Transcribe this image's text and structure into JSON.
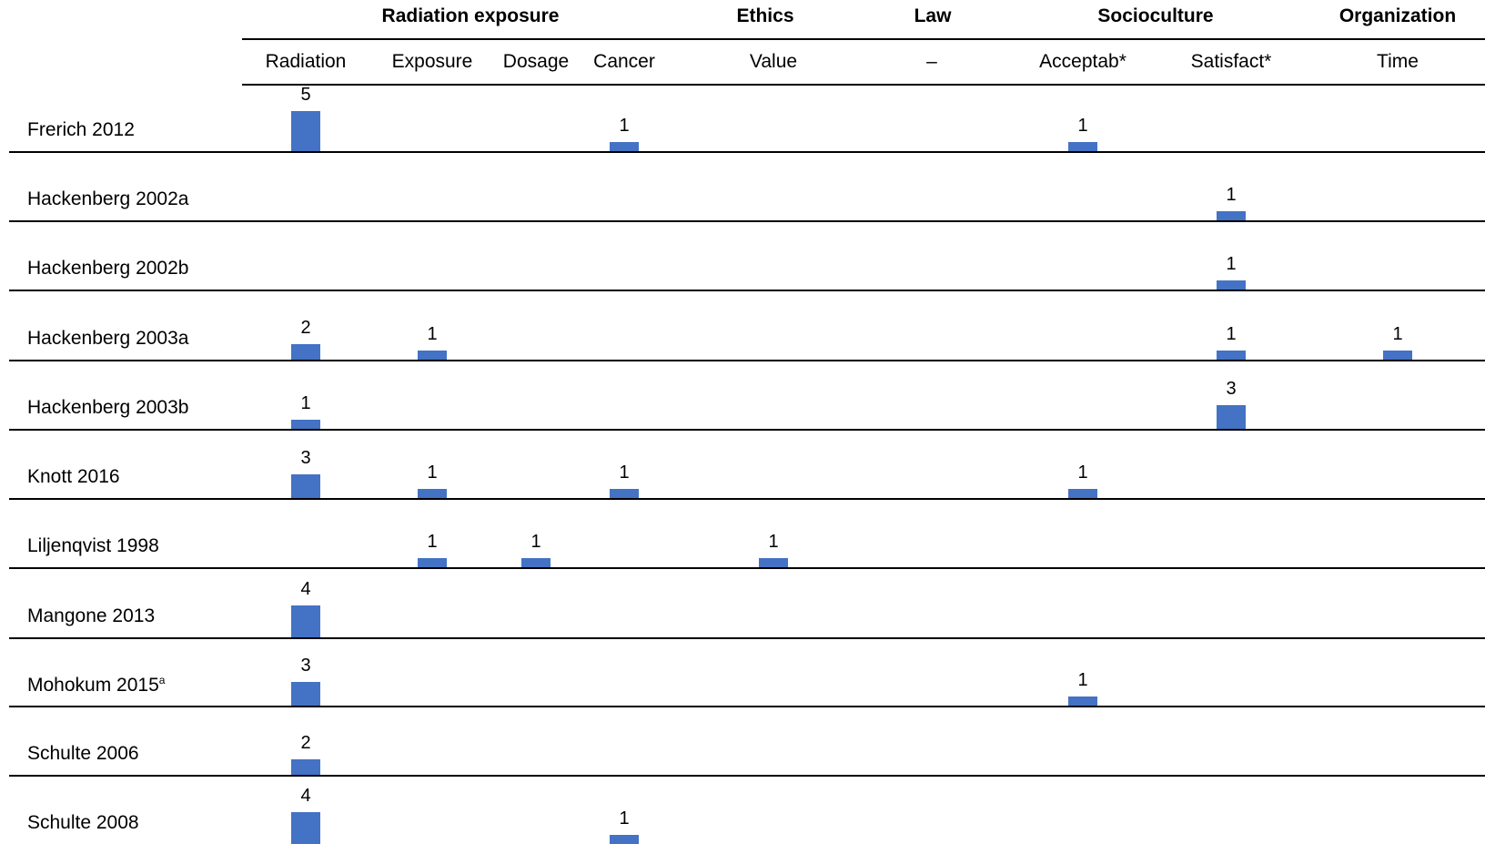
{
  "chart_data": {
    "type": "bar",
    "groups": [
      {
        "name": "Radiation exposure",
        "columns": [
          "Radiation",
          "Exposure",
          "Dosage",
          "Cancer"
        ]
      },
      {
        "name": "Ethics",
        "columns": [
          "Value"
        ]
      },
      {
        "name": "Law",
        "columns": [
          "–"
        ]
      },
      {
        "name": "Socioculture",
        "columns": [
          "Acceptab*",
          "Satisfact*"
        ]
      },
      {
        "name": "Organization",
        "columns": [
          "Time"
        ]
      }
    ],
    "columns": [
      "Radiation",
      "Exposure",
      "Dosage",
      "Cancer",
      "Value",
      "–",
      "Acceptab*",
      "Satisfact*",
      "Time"
    ],
    "rows": [
      {
        "label": "Frerich 2012",
        "sup": "",
        "values": {
          "Radiation": 5,
          "Cancer": 1,
          "Acceptab*": 1
        }
      },
      {
        "label": "Hackenberg 2002a",
        "sup": "",
        "values": {
          "Satisfact*": 1
        }
      },
      {
        "label": "Hackenberg 2002b",
        "sup": "",
        "values": {
          "Satisfact*": 1
        }
      },
      {
        "label": "Hackenberg 2003a",
        "sup": "",
        "values": {
          "Radiation": 2,
          "Exposure": 1,
          "Satisfact*": 1,
          "Time": 1
        }
      },
      {
        "label": "Hackenberg 2003b",
        "sup": "",
        "values": {
          "Radiation": 1,
          "Satisfact*": 3
        }
      },
      {
        "label": "Knott 2016",
        "sup": "",
        "values": {
          "Radiation": 3,
          "Exposure": 1,
          "Cancer": 1,
          "Acceptab*": 1
        }
      },
      {
        "label": "Liljenqvist 1998",
        "sup": "",
        "values": {
          "Exposure": 1,
          "Dosage": 1,
          "Value": 1
        }
      },
      {
        "label": "Mangone 2013",
        "sup": "",
        "values": {
          "Radiation": 4
        }
      },
      {
        "label": "Mohokum 2015",
        "sup": "a",
        "values": {
          "Radiation": 3,
          "Acceptab*": 1
        }
      },
      {
        "label": "Schulte 2006",
        "sup": "",
        "values": {
          "Radiation": 2
        }
      },
      {
        "label": "Schulte 2008",
        "sup": "",
        "values": {
          "Radiation": 4,
          "Cancer": 1
        }
      }
    ],
    "bar_color": "#4472C4"
  }
}
